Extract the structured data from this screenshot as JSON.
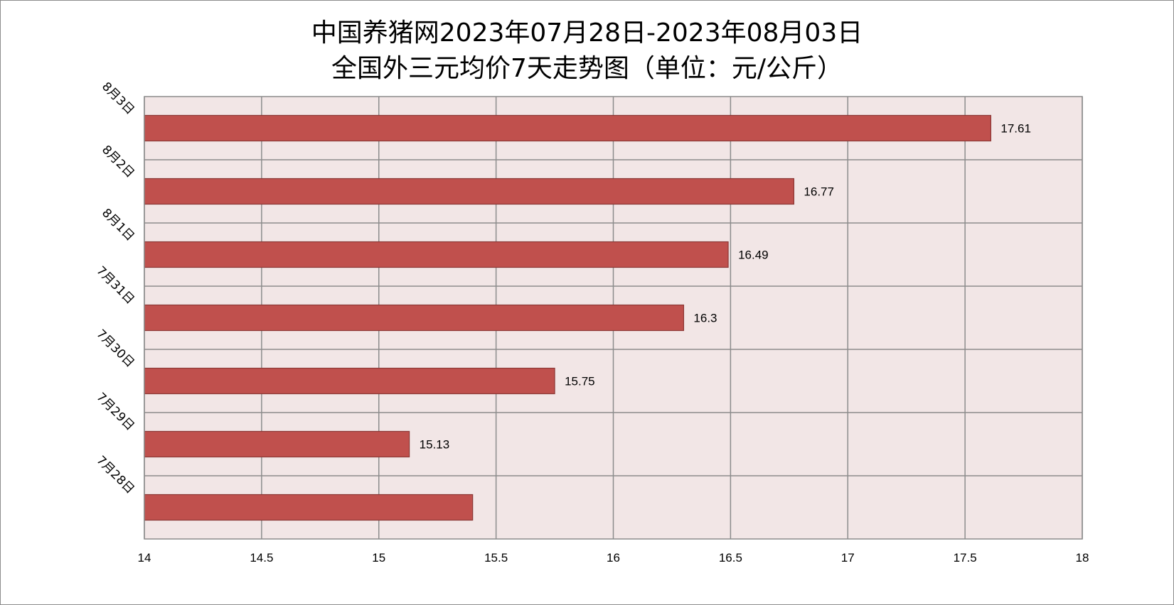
{
  "chart_data": {
    "type": "bar",
    "orientation": "horizontal",
    "title_lines": [
      "中国养猪网2023年07月28日-2023年08月03日",
      "全国外三元均价7天走势图（单位：元/公斤）"
    ],
    "categories": [
      "7月28日",
      "7月29日",
      "7月30日",
      "7月31日",
      "8月1日",
      "8月2日",
      "8月3日"
    ],
    "values": [
      15.4,
      15.13,
      15.75,
      16.3,
      16.49,
      16.77,
      17.61
    ],
    "data_labels": [
      "",
      "15.13",
      "15.75",
      "16.3",
      "16.49",
      "16.77",
      "17.61"
    ],
    "xlim": [
      14,
      18
    ],
    "x_ticks": [
      "14",
      "14.5",
      "15",
      "15.5",
      "16",
      "16.5",
      "17",
      "17.5",
      "18"
    ],
    "xlabel": "",
    "ylabel": "",
    "grid": true,
    "legend": "none",
    "colors": {
      "bar_fill": "#c0504d",
      "bar_stroke": "#8c3836",
      "plot_background": "#f2e6e6",
      "grid": "#8c8c8c"
    }
  }
}
